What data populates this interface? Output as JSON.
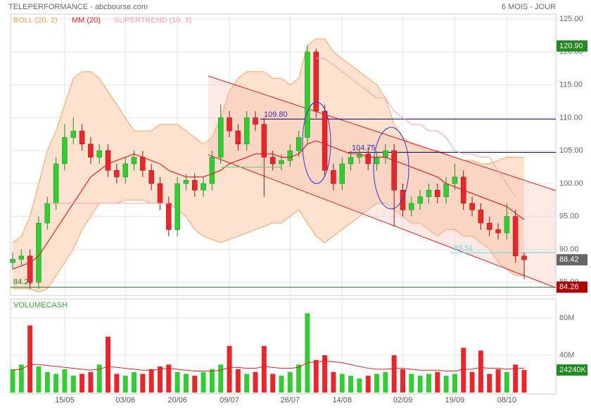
{
  "chart_data": {
    "type": "candlestick",
    "title": "TELEPERFORMANCE - abcbourse.com",
    "period": "6 MOIS - JOUR",
    "categories": [
      null,
      null,
      null,
      null,
      null,
      null,
      "15/05",
      null,
      null,
      null,
      null,
      null,
      null,
      "03/06",
      null,
      null,
      null,
      null,
      null,
      "20/06",
      null,
      null,
      null,
      null,
      null,
      "09/07",
      null,
      null,
      null,
      null,
      null,
      null,
      "26/07",
      null,
      null,
      null,
      null,
      null,
      "14/08",
      null,
      null,
      null,
      null,
      null,
      null,
      "02/09",
      null,
      null,
      null,
      null,
      null,
      "19/09",
      null,
      null,
      null,
      null,
      null,
      "08/10",
      null,
      null
    ],
    "open": [
      88,
      88.5,
      89,
      85,
      94,
      97,
      103,
      107,
      108,
      106,
      104,
      105,
      102,
      101,
      103,
      104,
      102,
      100,
      97,
      93,
      100,
      100.5,
      99,
      100,
      104,
      110,
      108,
      106,
      110,
      109,
      104,
      103,
      103.5,
      105,
      107,
      120,
      111,
      102,
      100,
      103,
      104,
      104.5,
      103,
      104,
      105,
      99,
      96,
      97,
      98,
      99,
      98,
      100,
      101,
      97,
      96,
      94,
      93,
      92.5,
      95,
      89
    ],
    "high": [
      89.5,
      90,
      90,
      95,
      98,
      104,
      109,
      110,
      109,
      107,
      106,
      106,
      103,
      104,
      105,
      105,
      103,
      101,
      98,
      101,
      101.5,
      101.5,
      101,
      105,
      112,
      111,
      109,
      111,
      111,
      110,
      105,
      104.5,
      106,
      108,
      120.9,
      120.5,
      112,
      103,
      104,
      105,
      105.5,
      105.5,
      105,
      106,
      106,
      100,
      98,
      99,
      100,
      100,
      101,
      103,
      102,
      98,
      97,
      95,
      94,
      97,
      96,
      89.5
    ],
    "low": [
      87,
      87.5,
      84,
      84,
      93,
      96,
      102,
      106,
      105,
      103,
      103,
      101,
      100,
      100,
      102,
      101,
      99,
      96,
      92,
      92,
      99,
      98,
      98,
      99,
      103,
      107,
      105,
      105,
      108,
      98,
      102,
      102,
      102.5,
      104,
      106,
      110,
      101,
      99,
      99,
      102,
      103,
      102,
      102,
      103,
      93.5,
      95,
      95,
      96,
      97,
      97,
      97,
      99,
      96,
      95,
      93,
      92,
      91.5,
      91.5,
      88,
      85.5
    ],
    "close": [
      88.5,
      89,
      85,
      94,
      97,
      103,
      107,
      108,
      106,
      104,
      105,
      102,
      101,
      103,
      104,
      102,
      100,
      97,
      93,
      100,
      100.5,
      99,
      100,
      104,
      110,
      108,
      106,
      110,
      109,
      104,
      103,
      103.5,
      105,
      107,
      120,
      111,
      102,
      100,
      103,
      104,
      104.5,
      103,
      104,
      105,
      99,
      96,
      97,
      98,
      99,
      98,
      100,
      101,
      97,
      96,
      94,
      93,
      92.5,
      95,
      89,
      88.42
    ],
    "up_color": "#33cc33",
    "down_color": "#e8262c",
    "ylim": [
      83,
      125.75
    ],
    "yticks": [
      {
        "value": 85,
        "label": "85.00"
      },
      {
        "value": 90,
        "label": "90.00"
      },
      {
        "value": 95,
        "label": "95.00"
      },
      {
        "value": 100,
        "label": "100.00"
      },
      {
        "value": 105,
        "label": "105.00"
      },
      {
        "value": 110,
        "label": "110.00"
      },
      {
        "value": 115,
        "label": "115.00"
      },
      {
        "value": 120,
        "label": "120.00"
      },
      {
        "value": 125,
        "label": "125.00"
      }
    ],
    "grid": true,
    "bollinger": {
      "name": "BOLL (20, 2)",
      "color": "#f4a460",
      "fill": "#fde3cf",
      "upper": [
        91,
        92,
        95,
        100,
        105,
        108,
        112,
        116,
        117,
        117,
        116,
        114,
        112,
        110,
        108,
        108,
        108,
        109,
        109,
        109,
        108,
        107,
        106,
        107,
        110,
        114,
        116,
        117,
        117,
        117,
        116,
        116,
        115,
        116,
        121,
        122,
        122,
        120,
        119,
        118,
        117,
        116,
        115,
        113,
        109,
        107,
        106,
        105.5,
        105,
        105,
        104.5,
        104,
        103.5,
        103.5,
        103,
        103,
        103.5,
        104,
        104,
        104
      ],
      "lower": [
        84,
        84,
        84,
        83.5,
        84,
        86,
        88,
        90,
        93,
        95,
        97,
        97,
        97,
        97.5,
        97.5,
        97.5,
        97,
        97,
        97,
        96,
        95,
        93,
        92,
        91.5,
        91,
        91.5,
        92,
        92.5,
        93,
        93.5,
        94,
        94,
        95,
        96,
        94,
        92,
        91,
        92,
        93,
        94,
        95,
        96,
        97,
        97,
        96,
        95,
        94,
        94,
        93,
        92,
        93,
        93,
        92,
        92,
        91,
        90,
        88,
        87,
        86,
        86
      ]
    },
    "ma": {
      "name": "MM (20)",
      "color": "#e02020",
      "values": [
        87,
        87.5,
        88,
        89,
        91,
        93,
        95,
        97,
        99,
        101,
        102,
        103,
        103.5,
        104,
        104.5,
        104,
        103.5,
        103,
        102,
        101.5,
        101,
        101,
        101,
        101.5,
        102,
        103,
        103.5,
        104,
        104.5,
        104.5,
        104.5,
        104,
        104,
        104.5,
        106,
        106.5,
        106,
        105.5,
        105,
        104.5,
        104.5,
        104,
        104,
        104,
        103.5,
        103,
        102.5,
        102,
        101.5,
        101,
        100,
        99.5,
        99,
        98.5,
        98,
        97.5,
        97,
        96.5,
        95.5,
        94.5
      ]
    },
    "supertrend": {
      "name": "SUPERTREND (10, 3)",
      "color": "#f4a0b0",
      "up_color": "#66cc66",
      "values": [
        null,
        null,
        null,
        null,
        97,
        97,
        97,
        97,
        97,
        97,
        97,
        97,
        97,
        97,
        97,
        97,
        97,
        97,
        97,
        null,
        null,
        null,
        null,
        null,
        102.5,
        102.5,
        102.5,
        102.5,
        102.5,
        102.5,
        102.5,
        102.5,
        null,
        null,
        null,
        119,
        119,
        118,
        117,
        116,
        115,
        114,
        113,
        113,
        111,
        110,
        109,
        109,
        108,
        108,
        107,
        105,
        104.5,
        104.5,
        104,
        104,
        102,
        100,
        98,
        null
      ]
    },
    "levels": [
      {
        "value": 109.8,
        "label": "109.80",
        "color": "#000066",
        "text_color": "#4422bb"
      },
      {
        "value": 104.75,
        "label": "104.75",
        "color": "#000066",
        "text_color": "#4422bb"
      },
      {
        "value": 89.51,
        "label": "89.51",
        "color": "#66d9e0",
        "text_color": "#66d9e0"
      },
      {
        "value": 84.26,
        "label": "84.26",
        "color": "#1a7a1a",
        "text_color": "#1a7a1a"
      }
    ],
    "high_tag": {
      "value": 120.9,
      "label": "120.90",
      "color": "#1f8a1f"
    },
    "last_tag_color": "#666666",
    "support_tag_color": "#b00000",
    "volume": {
      "name": "VOLUMECASH",
      "color": "#33aa33",
      "values": [
        25,
        30,
        72,
        28,
        22,
        20,
        25,
        18,
        20,
        22,
        30,
        60,
        20,
        18,
        22,
        20,
        25,
        28,
        30,
        22,
        20,
        18,
        22,
        25,
        30,
        50,
        25,
        20,
        22,
        50,
        20,
        18,
        22,
        30,
        85,
        35,
        40,
        22,
        20,
        18,
        15,
        18,
        20,
        22,
        40,
        25,
        20,
        18,
        20,
        22,
        18,
        20,
        48,
        22,
        45,
        20,
        25,
        22,
        30,
        24.24
      ],
      "ma": [
        24,
        25,
        30,
        30,
        29,
        28,
        27,
        26,
        25,
        24,
        25,
        28,
        27,
        26,
        25,
        24,
        24,
        25,
        26,
        25,
        24,
        23,
        23,
        23,
        24,
        27,
        27,
        26,
        26,
        28,
        27,
        26,
        26,
        27,
        32,
        33,
        34,
        33,
        32,
        30,
        28,
        26,
        25,
        25,
        26,
        26,
        25,
        24,
        24,
        24,
        23,
        23,
        25,
        25,
        27,
        26,
        26,
        25,
        26,
        26
      ],
      "ma_color": "#e02020",
      "ylim": [
        -1.5,
        100.4
      ],
      "yticks": [
        {
          "value": 40,
          "label": "40M"
        },
        {
          "value": 80,
          "label": "80M"
        }
      ],
      "tag": "24240K",
      "tag_color": "#1f8a1f"
    }
  }
}
